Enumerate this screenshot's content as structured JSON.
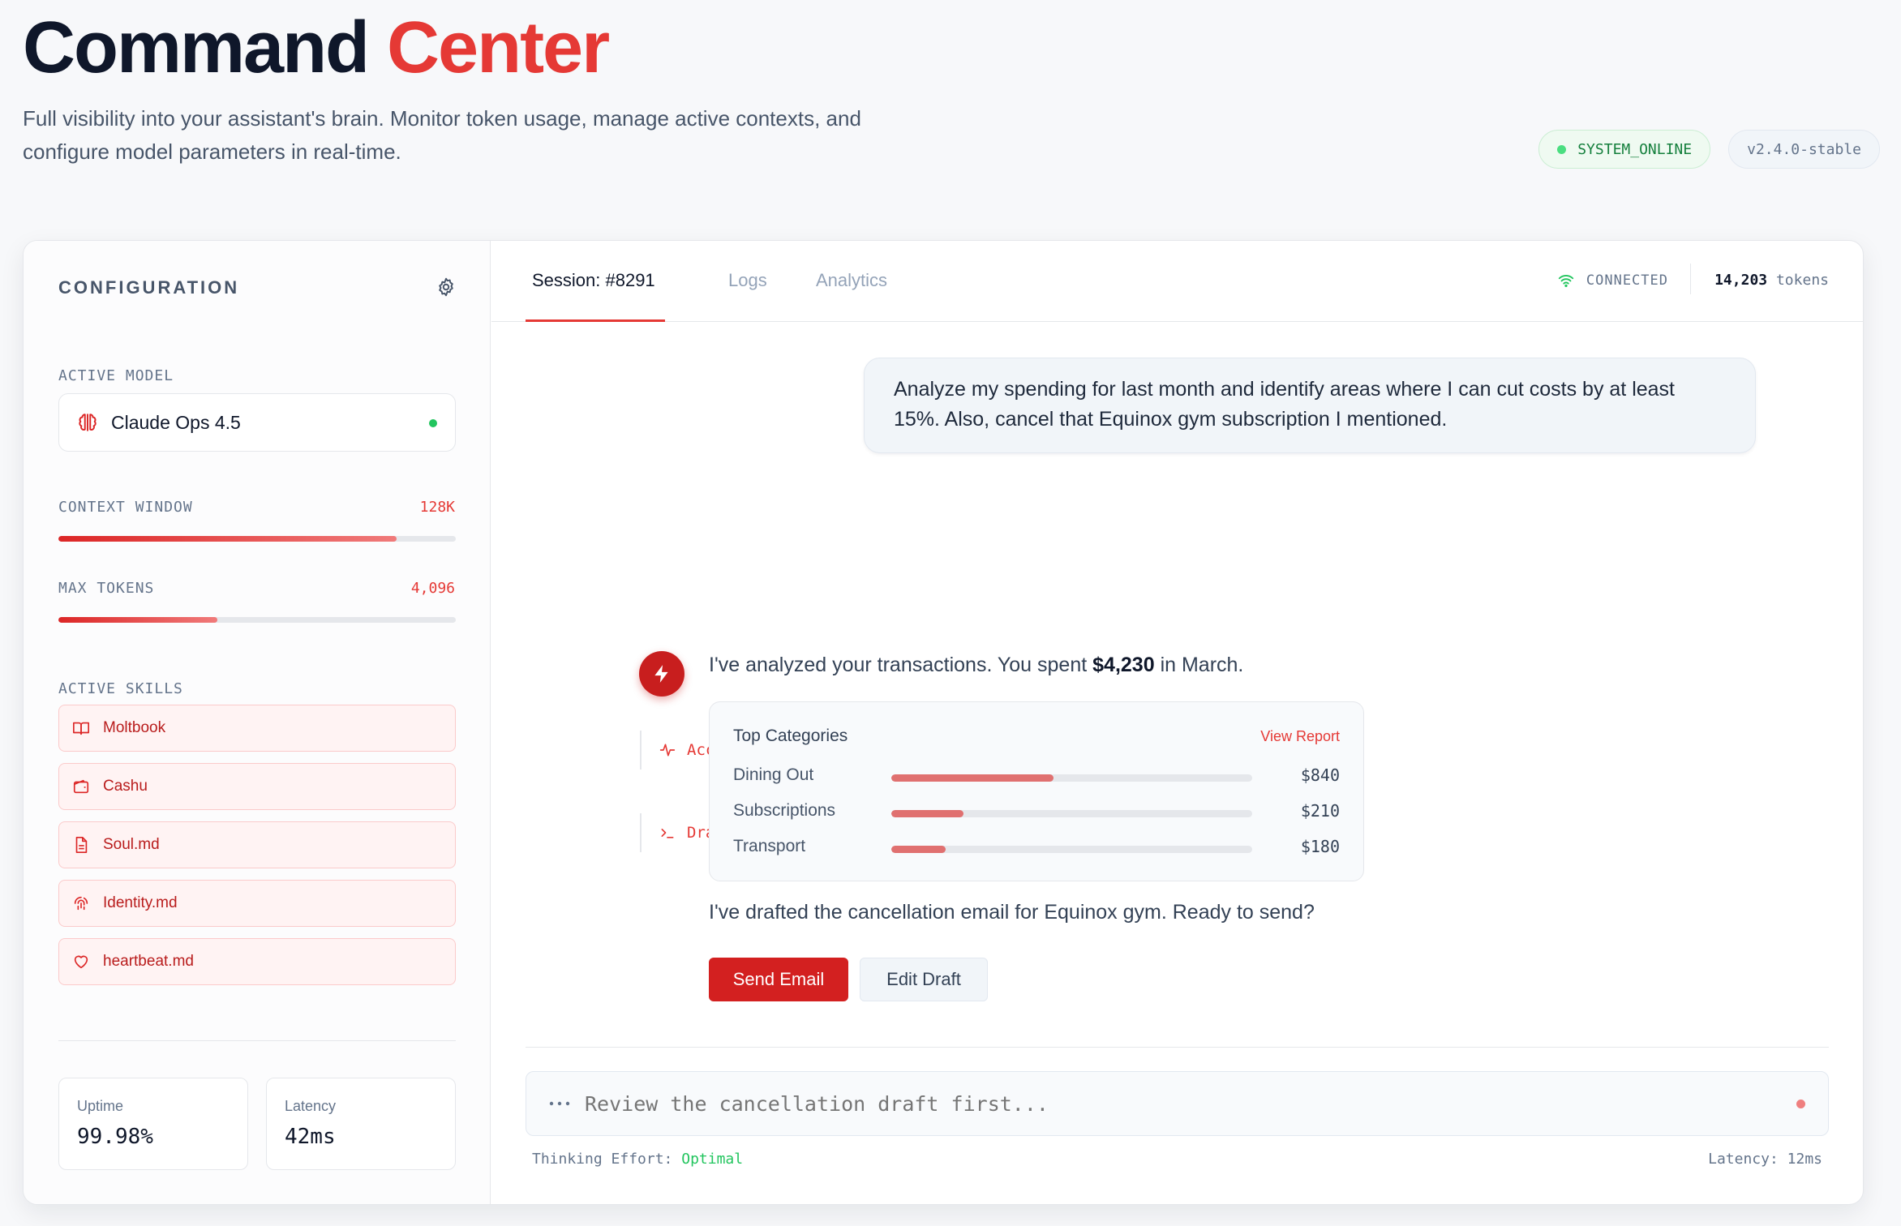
{
  "header": {
    "title_main": "Command",
    "title_accent": "Center",
    "subtitle": "Full visibility into your assistant's brain. Monitor token usage, manage active contexts, and configure model parameters in real-time.",
    "status_pill": "SYSTEM_ONLINE",
    "version_pill": "v2.4.0-stable"
  },
  "sidebar": {
    "title": "CONFIGURATION",
    "active_model_label": "ACTIVE MODEL",
    "active_model": "Claude Ops 4.5",
    "context_window_label": "CONTEXT WINDOW",
    "context_window_value": "128K",
    "context_window_fill": 0.85,
    "max_tokens_label": "MAX TOKENS",
    "max_tokens_value": "4,096",
    "max_tokens_fill": 0.4,
    "skills_label": "ACTIVE SKILLS",
    "skills": [
      {
        "label": "Moltbook",
        "icon": "book-icon"
      },
      {
        "label": "Cashu",
        "icon": "wallet-icon"
      },
      {
        "label": "Soul.md",
        "icon": "file-icon"
      },
      {
        "label": "Identity.md",
        "icon": "fingerprint-icon"
      },
      {
        "label": "heartbeat.md",
        "icon": "heart-icon"
      }
    ],
    "stats": [
      {
        "label": "Uptime",
        "value": "99.98%"
      },
      {
        "label": "Latency",
        "value": "42ms"
      }
    ]
  },
  "main": {
    "tabs": [
      {
        "label": "Session: #8291"
      },
      {
        "label": "Logs"
      },
      {
        "label": "Analytics"
      }
    ],
    "connection": "CONNECTED",
    "token_count": "14,203",
    "token_unit": "tokens",
    "user_message": "Analyze my spending for last month and identify areas where I can cut costs by at least 15%. Also, cancel that Equinox gym subscription I mentioned.",
    "traces": [
      {
        "label": "Accessing banking_api...",
        "icon": "activity-icon"
      },
      {
        "label": "Drafting cancellation_email...",
        "icon": "terminal-icon"
      }
    ],
    "reply_prefix": "I've analyzed your transactions. You spent",
    "reply_amount": "$4,230",
    "reply_suffix": "in March.",
    "categories_title": "Top Categories",
    "categories_link": "View Report",
    "categories": [
      {
        "name": "Dining Out",
        "value": "$840",
        "fill": 0.45
      },
      {
        "name": "Subscriptions",
        "value": "$210",
        "fill": 0.2
      },
      {
        "name": "Transport",
        "value": "$180",
        "fill": 0.15
      }
    ],
    "reply2": "I've drafted the cancellation email for Equinox gym. Ready to send?",
    "send_button": "Send Email",
    "edit_button": "Edit Draft",
    "input_placeholder": "Review the cancellation draft first...",
    "thinking_label": "Thinking Effort:",
    "thinking_value": "Optimal",
    "footer_latency": "Latency: 12ms"
  },
  "colors": {
    "accent": "#e53935",
    "online": "#22c55e"
  }
}
